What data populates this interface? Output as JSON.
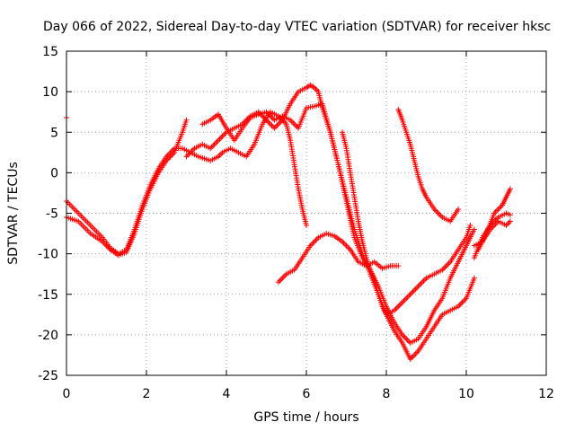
{
  "chart_data": {
    "type": "scatter",
    "title": "Day 066 of 2022, Sidereal Day-to-day VTEC variation (SDTVAR) for receiver hksc",
    "xlabel": "GPS time / hours",
    "ylabel": "SDTVAR / TECUs",
    "xlim": [
      0,
      12
    ],
    "ylim": [
      -25,
      15
    ],
    "xticks": [
      "0",
      "2",
      "4",
      "6",
      "8",
      "10",
      "12"
    ],
    "yticks": [
      "15",
      "10",
      "5",
      "0",
      "-5",
      "-10",
      "-15",
      "-20",
      "-25"
    ],
    "grid": true,
    "marker": "+",
    "marker_color": "#ff0000",
    "series": [
      {
        "x": [
          0.0,
          0.3,
          0.6,
          0.9,
          1.1,
          1.3,
          1.5,
          1.7,
          1.9,
          2.1,
          2.3,
          2.5,
          2.7,
          2.9,
          3.1,
          3.3,
          3.6,
          3.8,
          3.9,
          4.1,
          4.3,
          4.5,
          4.7,
          4.9,
          5.1,
          5.3,
          5.5,
          5.6,
          5.7,
          5.8,
          5.9,
          6.0
        ],
        "y": [
          -3.5,
          -5.0,
          -6.5,
          -8.0,
          -9.3,
          -10.0,
          -9.5,
          -7.0,
          -4.0,
          -1.5,
          0.5,
          2.0,
          3.0,
          3.0,
          2.5,
          2.0,
          1.5,
          2.0,
          2.5,
          3.0,
          2.5,
          2.0,
          3.5,
          6.0,
          7.5,
          7.0,
          6.0,
          4.0,
          1.0,
          -2.0,
          -4.5,
          -6.5
        ]
      },
      {
        "x": [
          0.0,
          0.3,
          0.6,
          0.9,
          1.1,
          1.3,
          1.5,
          1.7,
          1.9,
          2.1,
          2.3,
          2.5,
          2.7,
          2.9,
          3.0
        ],
        "y": [
          -5.5,
          -6.0,
          -7.5,
          -8.5,
          -9.5,
          -10.2,
          -9.8,
          -7.5,
          -4.5,
          -2.0,
          0.0,
          1.5,
          2.5,
          5.0,
          6.5
        ]
      },
      {
        "x": [
          0.0
        ],
        "y": [
          6.8
        ]
      },
      {
        "x": [
          3.4,
          3.6,
          3.8,
          4.0,
          4.2,
          4.4,
          4.6,
          4.8,
          5.0,
          5.2,
          5.4,
          5.6,
          5.8,
          6.0,
          6.2,
          6.4,
          6.6,
          6.8,
          7.0,
          7.2,
          7.4,
          7.6,
          7.8,
          8.0,
          8.2,
          8.4,
          8.6,
          8.8,
          9.0,
          9.2,
          9.4,
          9.6,
          9.8,
          10.0,
          10.2
        ],
        "y": [
          6.0,
          6.5,
          7.2,
          5.5,
          4.0,
          5.5,
          6.8,
          7.2,
          7.5,
          6.5,
          7.0,
          6.5,
          5.5,
          8.0,
          8.2,
          8.5,
          5.0,
          1.0,
          -3.0,
          -7.0,
          -10.0,
          -12.5,
          -15.0,
          -17.5,
          -19.5,
          -21.0,
          -23.0,
          -22.0,
          -20.5,
          -19.0,
          -17.5,
          -17.0,
          -16.5,
          -15.5,
          -13.0
        ]
      },
      {
        "x": [
          3.0,
          3.2,
          3.4,
          3.6,
          3.8,
          4.0,
          4.2,
          4.4,
          4.6,
          4.8,
          5.0,
          5.2,
          5.4,
          5.6,
          5.8,
          6.0,
          6.1,
          6.2,
          6.3,
          6.4,
          6.6,
          6.8,
          7.0,
          7.2,
          7.4,
          7.6,
          7.8,
          8.0,
          8.2,
          8.4,
          8.6,
          8.8,
          9.0,
          9.2,
          9.4,
          9.6,
          9.8,
          10.0,
          10.2
        ],
        "y": [
          2.0,
          3.0,
          3.5,
          3.0,
          4.0,
          5.0,
          5.5,
          6.0,
          7.0,
          7.5,
          6.5,
          5.5,
          6.5,
          8.5,
          10.0,
          10.5,
          10.8,
          10.5,
          10.0,
          8.0,
          5.0,
          1.0,
          -3.5,
          -8.0,
          -10.5,
          -12.0,
          -14.0,
          -16.5,
          -18.5,
          -20.0,
          -21.0,
          -20.5,
          -19.0,
          -17.0,
          -15.5,
          -13.0,
          -11.0,
          -9.0,
          -7.0
        ]
      },
      {
        "x": [
          5.3,
          5.5,
          5.7,
          5.9,
          6.1,
          6.3,
          6.5,
          6.7,
          6.9,
          7.1,
          7.3,
          7.5,
          7.7,
          7.9,
          8.1,
          8.3
        ],
        "y": [
          -13.5,
          -12.5,
          -12.0,
          -10.5,
          -9.0,
          -8.0,
          -7.5,
          -7.8,
          -8.5,
          -9.5,
          -11.0,
          -11.5,
          -11.0,
          -11.8,
          -11.5,
          -11.5
        ]
      },
      {
        "x": [
          6.9,
          7.0,
          7.1,
          7.2,
          7.3,
          7.4,
          7.5,
          7.6,
          7.7,
          7.8,
          7.9,
          8.0,
          8.2,
          8.4,
          8.6,
          8.8,
          9.0,
          9.2,
          9.4,
          9.6,
          9.8,
          10.0,
          10.1
        ],
        "y": [
          5.0,
          3.0,
          0.0,
          -3.0,
          -6.0,
          -8.5,
          -10.5,
          -12.0,
          -13.5,
          -15.0,
          -16.5,
          -17.5,
          -17.0,
          -16.0,
          -15.0,
          -14.0,
          -13.0,
          -12.5,
          -12.0,
          -11.0,
          -9.5,
          -8.0,
          -6.5
        ]
      },
      {
        "x": [
          8.3,
          8.4,
          8.5,
          8.6,
          8.7,
          8.8,
          8.9,
          9.0,
          9.2,
          9.4,
          9.6,
          9.8
        ],
        "y": [
          7.8,
          6.5,
          5.0,
          3.5,
          1.5,
          -0.5,
          -2.0,
          -3.0,
          -4.5,
          -5.5,
          -6.0,
          -4.5
        ]
      },
      {
        "x": [
          10.2,
          10.4,
          10.6,
          10.8,
          11.0,
          11.1
        ],
        "y": [
          -10.5,
          -8.0,
          -6.5,
          -5.5,
          -5.0,
          -5.2
        ]
      },
      {
        "x": [
          10.2,
          10.4,
          10.6,
          10.8,
          11.0,
          11.1
        ],
        "y": [
          -9.0,
          -8.5,
          -7.0,
          -6.0,
          -6.5,
          -6.0
        ]
      },
      {
        "x": [
          10.3,
          10.5,
          10.7,
          10.9,
          11.0,
          11.1
        ],
        "y": [
          -9.5,
          -7.5,
          -5.0,
          -4.0,
          -3.0,
          -2.0
        ]
      }
    ]
  }
}
